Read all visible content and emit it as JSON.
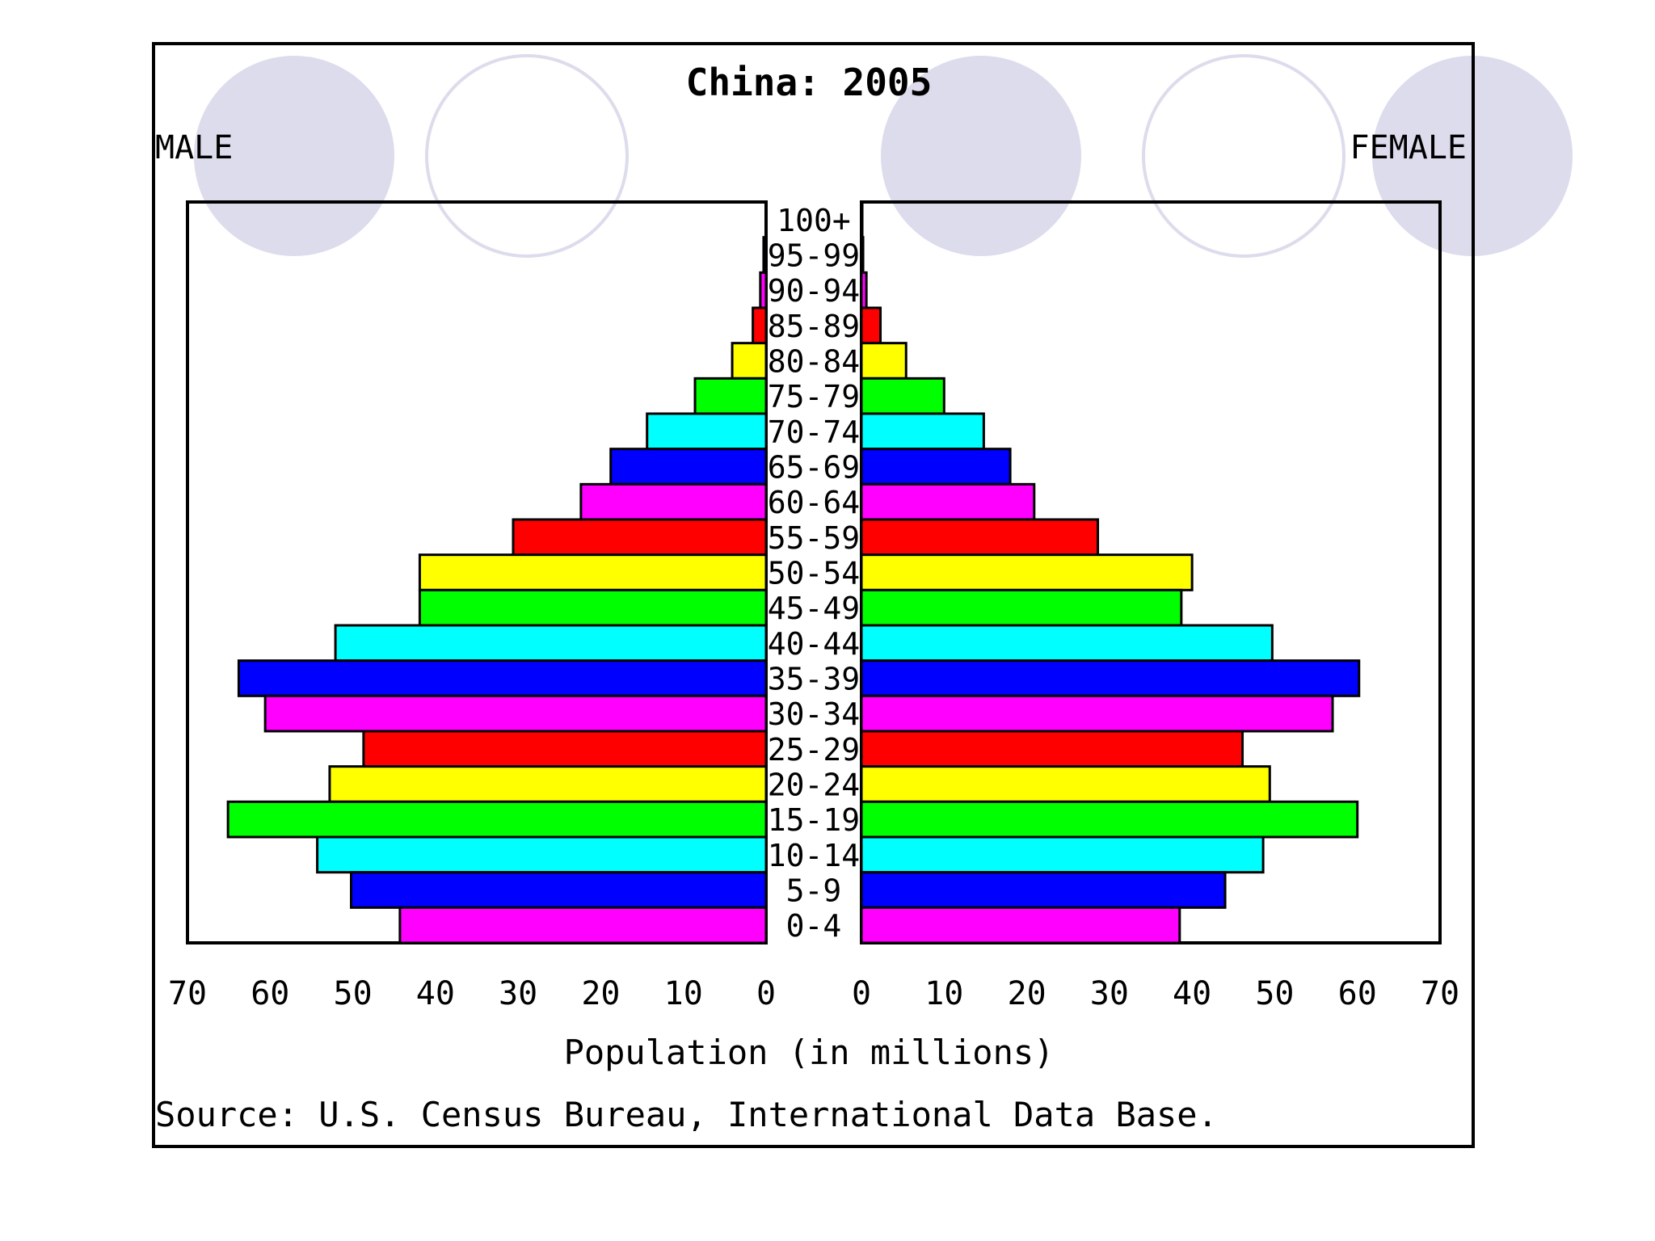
{
  "chart_data": {
    "type": "bar",
    "title": "China: 2005",
    "left_label": "MALE",
    "right_label": "FEMALE",
    "xlabel": "Population (in millions)",
    "source": "Source: U.S. Census Bureau, International Data Base.",
    "xlim": [
      0,
      70
    ],
    "xticks": [
      "70",
      "60",
      "50",
      "40",
      "30",
      "20",
      "10",
      "0"
    ],
    "xticks_right": [
      "0",
      "10",
      "20",
      "30",
      "40",
      "50",
      "60",
      "70"
    ],
    "categories": [
      "100+",
      "95-99",
      "90-94",
      "85-89",
      "80-84",
      "75-79",
      "70-74",
      "65-69",
      "60-64",
      "55-59",
      "50-54",
      "45-49",
      "40-44",
      "35-39",
      "30-34",
      "25-29",
      "20-24",
      "15-19",
      "10-14",
      "5-9",
      "0-4"
    ],
    "series": [
      {
        "name": "MALE",
        "values": [
          0.05,
          0.3,
          0.7,
          1.6,
          4.1,
          8.6,
          14.4,
          18.8,
          22.4,
          30.6,
          41.9,
          41.9,
          52.1,
          63.8,
          60.6,
          48.7,
          52.8,
          65.1,
          54.3,
          50.2,
          44.3
        ]
      },
      {
        "name": "FEMALE",
        "values": [
          0.1,
          0.2,
          0.6,
          2.3,
          5.4,
          10.0,
          14.8,
          18.0,
          20.9,
          28.6,
          40.0,
          38.7,
          49.7,
          60.2,
          57.0,
          46.1,
          49.4,
          60.0,
          48.6,
          44.0,
          38.5
        ]
      }
    ],
    "bar_colors": [
      "#ff00ff",
      "#0000ff",
      "#00ffff",
      "#00ff00",
      "#ffff00",
      "#ff0000"
    ],
    "grid": false,
    "legend": "none"
  },
  "decoration": {
    "circle_fill": "#dcdcec",
    "circle_stroke": "#dcdcec"
  }
}
